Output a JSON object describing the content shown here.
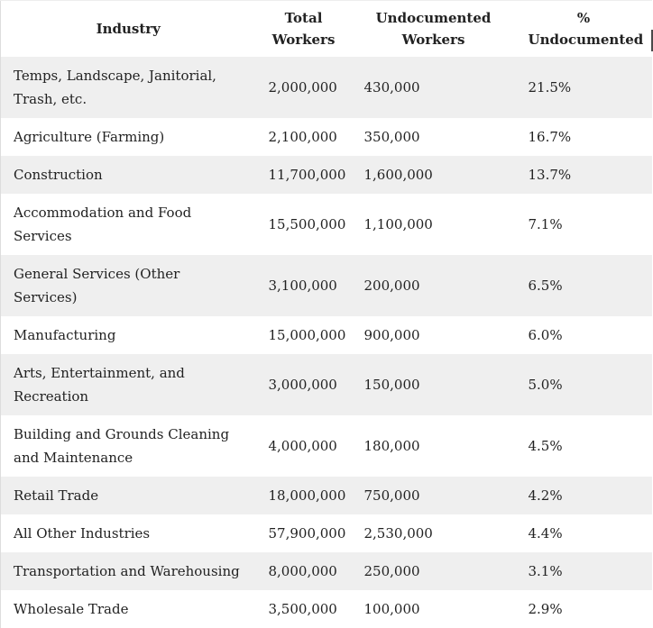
{
  "chart_data": {
    "type": "table",
    "columns": [
      "Industry",
      "Total Workers",
      "Undocumented Workers",
      "% Undocumented"
    ],
    "rows": [
      [
        "Temps, Landscape, Janitorial, Trash, etc.",
        "2,000,000",
        "430,000",
        "21.5%"
      ],
      [
        "Agriculture (Farming)",
        "2,100,000",
        "350,000",
        "16.7%"
      ],
      [
        "Construction",
        "11,700,000",
        "1,600,000",
        "13.7%"
      ],
      [
        "Accommodation and Food Services",
        "15,500,000",
        "1,100,000",
        "7.1%"
      ],
      [
        "General Services (Other Services)",
        "3,100,000",
        "200,000",
        "6.5%"
      ],
      [
        "Manufacturing",
        "15,000,000",
        "900,000",
        "6.0%"
      ],
      [
        "Arts, Entertainment, and Recreation",
        "3,000,000",
        "150,000",
        "5.0%"
      ],
      [
        "Building and Grounds Cleaning and Maintenance",
        "4,000,000",
        "180,000",
        "4.5%"
      ],
      [
        "Retail Trade",
        "18,000,000",
        "750,000",
        "4.2%"
      ],
      [
        "All Other Industries",
        "57,900,000",
        "2,530,000",
        "4.4%"
      ],
      [
        "Transportation and Warehousing",
        "8,000,000",
        "250,000",
        "3.1%"
      ],
      [
        "Wholesale Trade",
        "3,500,000",
        "100,000",
        "2.9%"
      ]
    ]
  },
  "theme": {
    "stripe": "#efefef",
    "text": "#222222",
    "border_left": "#dddddd",
    "border_top": "#ededed",
    "header_bg": "#ffffff",
    "edge_mark": "#4a4a4a"
  }
}
